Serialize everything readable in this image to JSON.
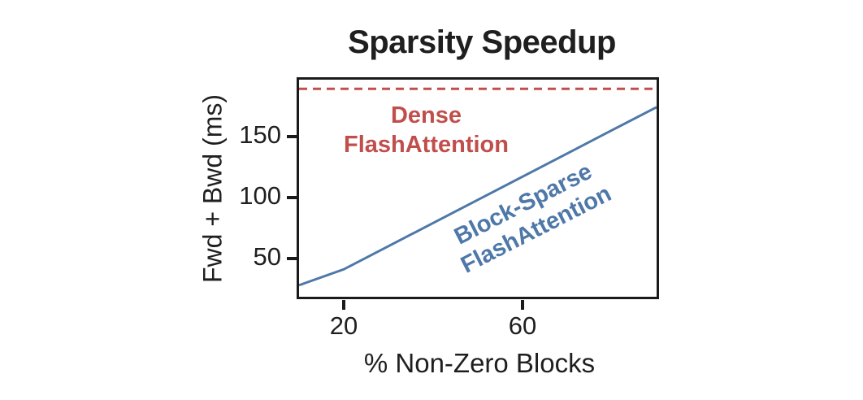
{
  "chart": {
    "title": "Sparsity Speedup",
    "xlabel": "% Non-Zero Blocks",
    "ylabel": "Fwd + Bwd (ms)",
    "annotations": {
      "dense": {
        "line1": "Dense",
        "line2": "FlashAttention",
        "color": "#c04f4c"
      },
      "sparse": {
        "line1": "Block-Sparse",
        "line2": "FlashAttention",
        "color": "#4e78a8"
      }
    },
    "colors": {
      "dense_line": "#c04f4c",
      "sparse_line": "#4e78a8",
      "axis": "#1a1a1a",
      "text": "#1f1f1f"
    }
  },
  "chart_data": {
    "type": "line",
    "title": "Sparsity Speedup",
    "xlabel": "% Non-Zero Blocks",
    "ylabel": "Fwd + Bwd (ms)",
    "xlim": [
      10,
      90
    ],
    "ylim": [
      18.5,
      196.5
    ],
    "x_ticks": [
      20,
      60
    ],
    "y_ticks": [
      50,
      100,
      150
    ],
    "grid": false,
    "legend_position": "inline-annotations",
    "series": [
      {
        "name": "Dense FlashAttention",
        "style": "dashed",
        "color": "#c04f4c",
        "x": [
          10,
          90
        ],
        "y": [
          189,
          189
        ]
      },
      {
        "name": "Block-Sparse FlashAttention",
        "style": "solid",
        "color": "#4e78a8",
        "x": [
          10,
          20,
          30,
          40,
          50,
          60,
          70,
          80,
          90
        ],
        "y": [
          28,
          41,
          60,
          79,
          98,
          117,
          136,
          155,
          174
        ]
      }
    ]
  }
}
